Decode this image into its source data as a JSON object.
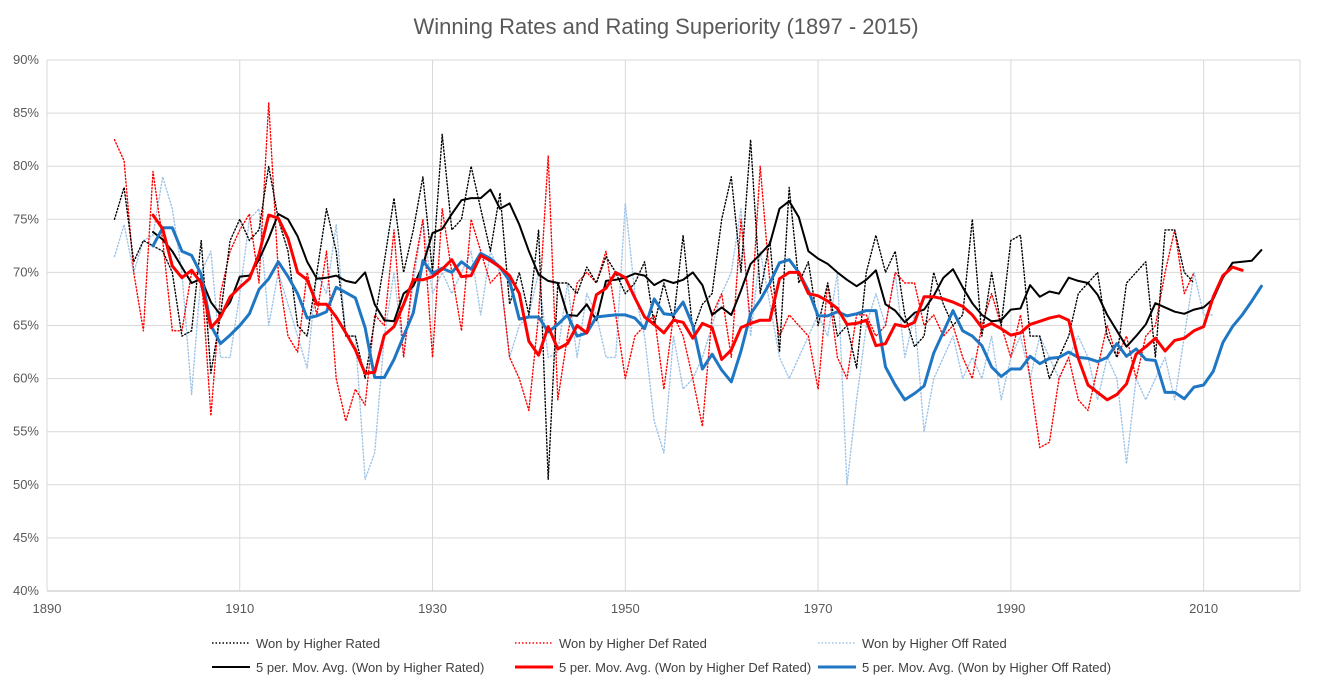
{
  "chart_data": {
    "type": "line",
    "title": "Winning Rates and Rating Superiority (1897 - 2015)",
    "xlabel": "",
    "ylabel": "",
    "xlim": [
      1890,
      2020
    ],
    "ylim": [
      0.4,
      0.9
    ],
    "x_ticks": [
      {
        "value": 1890,
        "label": "1890"
      },
      {
        "value": 1910,
        "label": "1910"
      },
      {
        "value": 1930,
        "label": "1930"
      },
      {
        "value": 1950,
        "label": "1950"
      },
      {
        "value": 1970,
        "label": "1970"
      },
      {
        "value": 1990,
        "label": "1990"
      },
      {
        "value": 2010,
        "label": "2010"
      }
    ],
    "y_ticks": [
      {
        "value": 0.4,
        "label": "40%"
      },
      {
        "value": 0.45,
        "label": "45%"
      },
      {
        "value": 0.5,
        "label": "50%"
      },
      {
        "value": 0.55,
        "label": "55%"
      },
      {
        "value": 0.6,
        "label": "60%"
      },
      {
        "value": 0.65,
        "label": "65%"
      },
      {
        "value": 0.7,
        "label": "70%"
      },
      {
        "value": 0.75,
        "label": "75%"
      },
      {
        "value": 0.8,
        "label": "80%"
      },
      {
        "value": 0.85,
        "label": "85%"
      },
      {
        "value": 0.9,
        "label": "90%"
      }
    ],
    "grid": "vertical and horizontal major gridlines",
    "legend_position": "bottom",
    "series": [
      {
        "name": "Won by Higher Rated",
        "color": "#000000",
        "style": "dotted",
        "x_start": 1897,
        "values": [
          0.75,
          0.78,
          0.71,
          0.73,
          0.725,
          0.72,
          0.7,
          0.64,
          0.645,
          0.73,
          0.605,
          0.66,
          0.73,
          0.75,
          0.73,
          0.74,
          0.8,
          0.75,
          0.72,
          0.65,
          0.64,
          0.7,
          0.76,
          0.72,
          0.64,
          0.64,
          0.6,
          0.655,
          0.71,
          0.77,
          0.7,
          0.74,
          0.79,
          0.7,
          0.83,
          0.74,
          0.75,
          0.8,
          0.76,
          0.72,
          0.775,
          0.67,
          0.7,
          0.66,
          0.74,
          0.505,
          0.69,
          0.69,
          0.68,
          0.705,
          0.69,
          0.715,
          0.7,
          0.68,
          0.69,
          0.71,
          0.65,
          0.69,
          0.655,
          0.735,
          0.645,
          0.67,
          0.68,
          0.75,
          0.79,
          0.7,
          0.825,
          0.68,
          0.73,
          0.625,
          0.78,
          0.69,
          0.71,
          0.65,
          0.69,
          0.64,
          0.65,
          0.61,
          0.7,
          0.735,
          0.7,
          0.72,
          0.66,
          0.63,
          0.64,
          0.7,
          0.67,
          0.65,
          0.66,
          0.75,
          0.64,
          0.7,
          0.65,
          0.73,
          0.735,
          0.64,
          0.64,
          0.6,
          0.62,
          0.64,
          0.68,
          0.69,
          0.7,
          0.64,
          0.62,
          0.69,
          0.7,
          0.71,
          0.62,
          0.74,
          0.74,
          0.7,
          0.69
        ],
        "values_note": ""
      },
      {
        "name": "Won by Higher Def Rated",
        "color": "#ff0000",
        "style": "dotted",
        "x_start": 1897,
        "values": [
          0.825,
          0.805,
          0.7,
          0.645,
          0.795,
          0.73,
          0.645,
          0.645,
          0.7,
          0.7,
          0.565,
          0.68,
          0.72,
          0.74,
          0.755,
          0.69,
          0.86,
          0.7,
          0.64,
          0.625,
          0.7,
          0.66,
          0.72,
          0.6,
          0.56,
          0.59,
          0.575,
          0.66,
          0.65,
          0.74,
          0.62,
          0.7,
          0.75,
          0.62,
          0.76,
          0.7,
          0.645,
          0.75,
          0.72,
          0.69,
          0.7,
          0.62,
          0.6,
          0.57,
          0.66,
          0.81,
          0.58,
          0.64,
          0.69,
          0.7,
          0.69,
          0.72,
          0.66,
          0.6,
          0.64,
          0.65,
          0.66,
          0.59,
          0.66,
          0.64,
          0.6,
          0.555,
          0.66,
          0.68,
          0.62,
          0.75,
          0.65,
          0.8,
          0.69,
          0.64,
          0.66,
          0.65,
          0.64,
          0.59,
          0.69,
          0.62,
          0.6,
          0.66,
          0.66,
          0.64,
          0.65,
          0.7,
          0.69,
          0.69,
          0.65,
          0.66,
          0.64,
          0.65,
          0.62,
          0.6,
          0.65,
          0.68,
          0.65,
          0.62,
          0.66,
          0.6,
          0.535,
          0.54,
          0.6,
          0.62,
          0.58,
          0.57,
          0.61,
          0.65,
          0.62,
          0.64,
          0.6,
          0.64,
          0.65,
          0.7,
          0.74,
          0.68,
          0.7
        ],
        "values_note": ""
      },
      {
        "name": "Won by Higher Off Rated",
        "color": "#9dc3e6",
        "style": "dotted",
        "x_start": 1897,
        "values": [
          0.715,
          0.745,
          0.7,
          0.73,
          0.735,
          0.79,
          0.76,
          0.7,
          0.585,
          0.7,
          0.72,
          0.62,
          0.62,
          0.68,
          0.75,
          0.76,
          0.65,
          0.7,
          0.67,
          0.64,
          0.61,
          0.7,
          0.68,
          0.745,
          0.64,
          0.64,
          0.505,
          0.53,
          0.64,
          0.7,
          0.62,
          0.69,
          0.75,
          0.68,
          0.7,
          0.68,
          0.7,
          0.72,
          0.66,
          0.72,
          0.7,
          0.62,
          0.65,
          0.66,
          0.7,
          0.62,
          0.625,
          0.69,
          0.62,
          0.68,
          0.66,
          0.62,
          0.62,
          0.765,
          0.68,
          0.64,
          0.56,
          0.53,
          0.64,
          0.59,
          0.6,
          0.62,
          0.65,
          0.68,
          0.7,
          0.76,
          0.64,
          0.72,
          0.67,
          0.62,
          0.6,
          0.62,
          0.64,
          0.66,
          0.64,
          0.7,
          0.5,
          0.58,
          0.65,
          0.68,
          0.65,
          0.7,
          0.62,
          0.66,
          0.55,
          0.6,
          0.62,
          0.64,
          0.6,
          0.62,
          0.6,
          0.64,
          0.58,
          0.62,
          0.64,
          0.6,
          0.64,
          0.62,
          0.6,
          0.62,
          0.64,
          0.62,
          0.58,
          0.62,
          0.6,
          0.52,
          0.6,
          0.58,
          0.6,
          0.62,
          0.58,
          0.64,
          0.7,
          0.66,
          0.66
        ],
        "values_note": ""
      },
      {
        "name": "5 per. Mov. Avg. (Won by Higher Rated)",
        "color": "#000000",
        "style": "solid",
        "width": 2,
        "x_start": 1901,
        "values": [
          0.738,
          0.731,
          0.72,
          0.705,
          0.69,
          0.694,
          0.672,
          0.66,
          0.672,
          0.696,
          0.697,
          0.712,
          0.732,
          0.755,
          0.75,
          0.734,
          0.71,
          0.694,
          0.695,
          0.697,
          0.692,
          0.69,
          0.7,
          0.67,
          0.655,
          0.654,
          0.68,
          0.687,
          0.707,
          0.737,
          0.741,
          0.755,
          0.768,
          0.77,
          0.77,
          0.778,
          0.76,
          0.765,
          0.745,
          0.72,
          0.698,
          0.692,
          0.69,
          0.66,
          0.659,
          0.67,
          0.655,
          0.692,
          0.693,
          0.695,
          0.699,
          0.697,
          0.688,
          0.693,
          0.69,
          0.693,
          0.7,
          0.688,
          0.66,
          0.667,
          0.66,
          0.683,
          0.708,
          0.717,
          0.727,
          0.76,
          0.767,
          0.752,
          0.72,
          0.713,
          0.708,
          0.7,
          0.693,
          0.687,
          0.693,
          0.702,
          0.67,
          0.664,
          0.653,
          0.662,
          0.665,
          0.678,
          0.695,
          0.703,
          0.686,
          0.671,
          0.66,
          0.654,
          0.655,
          0.665,
          0.666,
          0.688,
          0.677,
          0.682,
          0.68,
          0.695,
          0.692,
          0.69,
          0.679,
          0.66,
          0.645,
          0.63,
          0.64,
          0.651,
          0.671,
          0.667,
          0.663,
          0.661,
          0.665,
          0.667,
          0.675,
          0.695,
          0.709,
          0.71,
          0.711,
          0.721
        ],
        "values_note": ""
      },
      {
        "name": "5 per. Mov. Avg. (Won by Higher Def Rated)",
        "color": "#ff0000",
        "style": "solid",
        "width": 3,
        "x_start": 1901,
        "values": [
          0.754,
          0.741,
          0.706,
          0.695,
          0.702,
          0.69,
          0.648,
          0.658,
          0.677,
          0.686,
          0.694,
          0.717,
          0.754,
          0.751,
          0.732,
          0.7,
          0.693,
          0.67,
          0.67,
          0.658,
          0.643,
          0.627,
          0.605,
          0.606,
          0.641,
          0.649,
          0.67,
          0.693,
          0.693,
          0.696,
          0.703,
          0.712,
          0.696,
          0.697,
          0.716,
          0.711,
          0.705,
          0.697,
          0.68,
          0.635,
          0.622,
          0.649,
          0.628,
          0.633,
          0.65,
          0.643,
          0.679,
          0.685,
          0.7,
          0.695,
          0.676,
          0.658,
          0.651,
          0.643,
          0.655,
          0.653,
          0.638,
          0.652,
          0.648,
          0.618,
          0.627,
          0.648,
          0.652,
          0.655,
          0.655,
          0.694,
          0.7,
          0.7,
          0.68,
          0.678,
          0.673,
          0.666,
          0.651,
          0.652,
          0.655,
          0.631,
          0.633,
          0.651,
          0.649,
          0.653,
          0.677,
          0.677,
          0.675,
          0.672,
          0.668,
          0.66,
          0.648,
          0.652,
          0.647,
          0.641,
          0.643,
          0.651,
          0.654,
          0.657,
          0.659,
          0.655,
          0.619,
          0.594,
          0.587,
          0.58,
          0.585,
          0.595,
          0.623,
          0.63,
          0.638,
          0.626,
          0.636,
          0.638,
          0.645,
          0.649,
          0.677,
          0.697,
          0.705,
          0.702
        ],
        "values_note": ""
      },
      {
        "name": "5 per. Mov. Avg. (Won by Higher Off Rated)",
        "color": "#1f77c4",
        "style": "solid",
        "width": 3,
        "x_start": 1901,
        "values": [
          0.725,
          0.742,
          0.742,
          0.72,
          0.716,
          0.698,
          0.65,
          0.633,
          0.641,
          0.65,
          0.661,
          0.684,
          0.694,
          0.71,
          0.696,
          0.68,
          0.657,
          0.659,
          0.663,
          0.686,
          0.681,
          0.676,
          0.648,
          0.601,
          0.601,
          0.618,
          0.64,
          0.662,
          0.711,
          0.699,
          0.704,
          0.7,
          0.71,
          0.703,
          0.718,
          0.713,
          0.705,
          0.692,
          0.656,
          0.658,
          0.658,
          0.644,
          0.651,
          0.66,
          0.64,
          0.643,
          0.658,
          0.659,
          0.66,
          0.66,
          0.657,
          0.647,
          0.675,
          0.661,
          0.66,
          0.672,
          0.65,
          0.609,
          0.623,
          0.608,
          0.597,
          0.626,
          0.661,
          0.674,
          0.69,
          0.709,
          0.712,
          0.7,
          0.683,
          0.659,
          0.659,
          0.663,
          0.659,
          0.661,
          0.664,
          0.664,
          0.611,
          0.594,
          0.58,
          0.586,
          0.593,
          0.624,
          0.644,
          0.664,
          0.645,
          0.64,
          0.631,
          0.611,
          0.602,
          0.609,
          0.609,
          0.621,
          0.614,
          0.619,
          0.62,
          0.625,
          0.62,
          0.619,
          0.616,
          0.62,
          0.633,
          0.621,
          0.628,
          0.618,
          0.617,
          0.587,
          0.587,
          0.581,
          0.592,
          0.594,
          0.607,
          0.634,
          0.649,
          0.66,
          0.673,
          0.687
        ],
        "values_note": ""
      }
    ]
  }
}
